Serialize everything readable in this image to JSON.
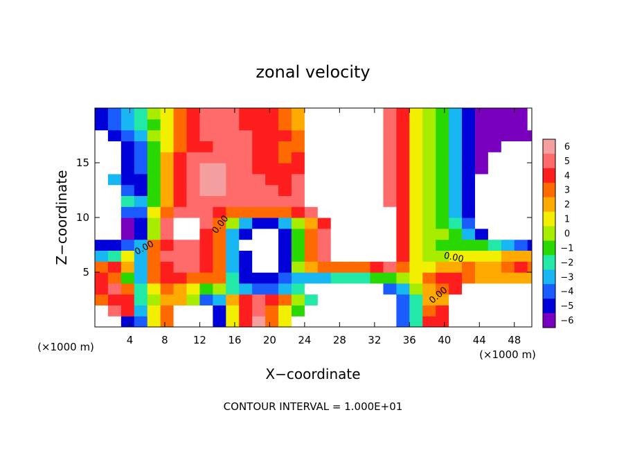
{
  "chart_data": {
    "type": "heatmap",
    "title": "zonal velocity",
    "xlabel": "X−coordinate",
    "ylabel": "Z−coordinate",
    "x_unit_label": "(×1000 m)",
    "z_unit_label": "(×1000 m)",
    "footer": "CONTOUR INTERVAL = 1.000E+01",
    "xlim": [
      0,
      50
    ],
    "ylim": [
      0,
      20
    ],
    "x_ticks": [
      4,
      8,
      12,
      16,
      20,
      24,
      28,
      32,
      36,
      40,
      44,
      48
    ],
    "y_ticks": [
      5,
      10,
      15
    ],
    "colorbar": {
      "levels": [
        6,
        5,
        4,
        3,
        2,
        1,
        0,
        -1,
        -2,
        -3,
        -4,
        -5,
        -6
      ],
      "level_labels": [
        "6",
        "5",
        "4",
        "3",
        "2",
        "1",
        "0",
        "−1",
        "−2",
        "−3",
        "−4",
        "−5",
        "−6"
      ],
      "colors": [
        "#f4a0a0",
        "#ff6a6a",
        "#ff1e1e",
        "#ff6a00",
        "#ffaa00",
        "#f2ef00",
        "#a8ec00",
        "#29d800",
        "#22e8a8",
        "#19b6f4",
        "#1a5cff",
        "#0000d8",
        "#7a00c0"
      ],
      "out_of_range_color": "#ffffff"
    },
    "contour_labels": [
      {
        "text": "0.00",
        "x": 5.8,
        "z": 7.0,
        "angle": -28
      },
      {
        "text": "0.00",
        "x": 14.6,
        "z": 9.2,
        "angle": -52
      },
      {
        "text": "0.00",
        "x": 41.0,
        "z": 6.1,
        "angle": 12
      },
      {
        "text": "0.00",
        "x": 39.5,
        "z": 2.7,
        "angle": -40
      }
    ],
    "cells": {
      "x": [
        0,
        1.5,
        3,
        4.5,
        6,
        7.5,
        9,
        10.5,
        12,
        13.5,
        15,
        16.5,
        18,
        19.5,
        21,
        22.5,
        24,
        25.5,
        27,
        28.5,
        30,
        31.5,
        33,
        34.5,
        36,
        37.5,
        39,
        40.5,
        42,
        43.5,
        45,
        46.5,
        48,
        49.5
      ],
      "z": [
        0,
        1,
        2,
        3,
        4,
        5,
        6,
        7,
        8,
        9,
        10,
        11,
        12,
        13,
        14,
        15,
        16,
        17,
        18,
        19
      ],
      "values": [
        [
          8,
          8,
          -5,
          -4,
          1,
          3,
          8,
          8,
          -8,
          -5,
          1,
          4,
          6,
          3,
          1,
          8,
          8,
          8,
          -8,
          -8,
          -8,
          -8,
          8,
          -4,
          -2,
          4,
          4,
          8,
          8,
          8,
          8,
          8,
          8,
          8
        ],
        [
          8,
          5,
          4,
          -3,
          1,
          3,
          8,
          8,
          8,
          -5,
          1,
          4,
          5,
          3,
          1,
          -1,
          8,
          8,
          -8,
          -8,
          -8,
          -8,
          8,
          -4,
          -2,
          3,
          4,
          8,
          8,
          8,
          8,
          8,
          8,
          8
        ],
        [
          3,
          4,
          4,
          -2,
          0,
          2,
          2,
          0,
          -4,
          -3,
          2,
          4,
          5,
          4,
          3,
          0,
          -2,
          8,
          8,
          -8,
          -8,
          -8,
          -8,
          -4,
          -2,
          2,
          2,
          8,
          8,
          8,
          8,
          8,
          8,
          8
        ],
        [
          4,
          5,
          3,
          -2,
          1,
          3,
          2,
          1,
          -1,
          0,
          -2,
          -3,
          -4,
          -4,
          -3,
          -2,
          8,
          8,
          -8,
          -8,
          -8,
          -8,
          -4,
          -3,
          0,
          2,
          3,
          4,
          8,
          8,
          8,
          8,
          8,
          8
        ],
        [
          4,
          3,
          -1,
          -3,
          3,
          4,
          4,
          3,
          3,
          3,
          -2,
          -5,
          -5,
          -5,
          -4,
          -3,
          -3,
          -3,
          -2,
          -2,
          -2,
          -1,
          -1,
          0,
          1,
          3,
          4,
          4,
          3,
          2,
          2,
          2,
          2,
          2
        ],
        [
          3,
          4,
          2,
          -3,
          3,
          4,
          5,
          5,
          4,
          3,
          -3,
          -5,
          8,
          8,
          -5,
          0,
          2,
          3,
          3,
          3,
          3,
          4,
          5,
          3,
          1,
          1,
          2,
          2,
          3,
          2,
          2,
          3,
          4,
          3
        ],
        [
          -3,
          -2,
          1,
          -3,
          3,
          5,
          5,
          5,
          4,
          3,
          -3,
          -5,
          8,
          8,
          -5,
          -1,
          3,
          5,
          8,
          8,
          8,
          8,
          8,
          4,
          1,
          0,
          0,
          1,
          1,
          1,
          1,
          2,
          2,
          2
        ],
        [
          -5,
          -5,
          -4,
          -3,
          3,
          4,
          5,
          5,
          4,
          3,
          -3,
          8,
          8,
          8,
          -5,
          -1,
          3,
          5,
          8,
          8,
          8,
          8,
          8,
          4,
          1,
          0,
          -1,
          -1,
          -1,
          -1,
          -2,
          -3,
          -4,
          -5
        ],
        [
          8,
          8,
          -6,
          -5,
          0,
          5,
          8,
          8,
          4,
          3,
          -3,
          -5,
          8,
          8,
          -5,
          -1,
          3,
          5,
          8,
          8,
          8,
          8,
          8,
          4,
          1,
          0,
          0,
          -1,
          -3,
          -5,
          8,
          8,
          8,
          8
        ],
        [
          8,
          8,
          -6,
          -5,
          0,
          5,
          8,
          8,
          5,
          3,
          0,
          -3,
          -5,
          -5,
          -3,
          0,
          2,
          4,
          8,
          8,
          8,
          8,
          8,
          4,
          1,
          0,
          -1,
          -2,
          -4,
          8,
          8,
          8,
          8,
          8
        ],
        [
          8,
          8,
          -4,
          -4,
          1,
          3,
          5,
          5,
          5,
          4,
          3,
          3,
          3,
          3,
          3,
          4,
          5,
          8,
          8,
          8,
          8,
          8,
          8,
          4,
          1,
          0,
          -1,
          -3,
          -5,
          8,
          8,
          8,
          8,
          8
        ],
        [
          8,
          8,
          -2,
          -3,
          -1,
          2,
          4,
          5,
          5,
          5,
          5,
          5,
          5,
          5,
          5,
          5,
          8,
          8,
          8,
          8,
          8,
          8,
          5,
          4,
          1,
          0,
          -1,
          -3,
          -5,
          8,
          8,
          8,
          8,
          8
        ],
        [
          8,
          8,
          -4,
          -5,
          -1,
          2,
          4,
          5,
          6,
          6,
          5,
          5,
          5,
          5,
          4,
          5,
          8,
          8,
          8,
          8,
          8,
          8,
          5,
          4,
          1,
          0,
          -1,
          -3,
          -5,
          8,
          8,
          8,
          8,
          8
        ],
        [
          8,
          -3,
          -5,
          -5,
          -1,
          2,
          4,
          5,
          6,
          6,
          5,
          5,
          5,
          4,
          4,
          5,
          8,
          8,
          8,
          8,
          8,
          8,
          5,
          4,
          1,
          0,
          -1,
          -3,
          -5,
          8,
          8,
          8,
          8,
          8
        ],
        [
          8,
          8,
          -5,
          -4,
          -1,
          2,
          4,
          5,
          6,
          6,
          5,
          5,
          4,
          4,
          4,
          4,
          8,
          8,
          8,
          8,
          8,
          8,
          5,
          4,
          1,
          0,
          -1,
          -3,
          -5,
          -6,
          8,
          8,
          8,
          8
        ],
        [
          8,
          8,
          -5,
          -4,
          -1,
          2,
          4,
          5,
          5,
          5,
          5,
          5,
          4,
          4,
          3,
          4,
          8,
          8,
          8,
          8,
          8,
          8,
          5,
          4,
          1,
          0,
          -1,
          -3,
          -5,
          -6,
          8,
          8,
          8,
          8
        ],
        [
          8,
          8,
          -5,
          -4,
          -1,
          1,
          3,
          4,
          4,
          5,
          5,
          5,
          4,
          4,
          3,
          3,
          8,
          8,
          8,
          8,
          8,
          8,
          5,
          4,
          1,
          0,
          -1,
          -3,
          -5,
          -6,
          -6,
          8,
          8,
          8
        ],
        [
          8,
          -5,
          -4,
          -3,
          0,
          1,
          3,
          4,
          5,
          5,
          5,
          5,
          4,
          4,
          4,
          3,
          8,
          8,
          8,
          8,
          8,
          8,
          5,
          4,
          1,
          0,
          -1,
          -3,
          -5,
          -6,
          -6,
          -6,
          -6,
          -6
        ],
        [
          -5,
          -4,
          -3,
          -2,
          -1,
          1,
          3,
          4,
          5,
          5,
          5,
          4,
          4,
          4,
          3,
          2,
          8,
          8,
          8,
          8,
          8,
          8,
          5,
          4,
          1,
          0,
          -1,
          -3,
          -5,
          -6,
          -6,
          -6,
          -6,
          -8
        ],
        [
          -5,
          -4,
          -3,
          -2,
          0,
          1,
          3,
          4,
          5,
          5,
          5,
          4,
          4,
          4,
          3,
          2,
          8,
          8,
          8,
          8,
          8,
          8,
          5,
          4,
          1,
          0,
          -1,
          -3,
          -5,
          -6,
          -6,
          -6,
          -6,
          -8
        ]
      ]
    }
  }
}
